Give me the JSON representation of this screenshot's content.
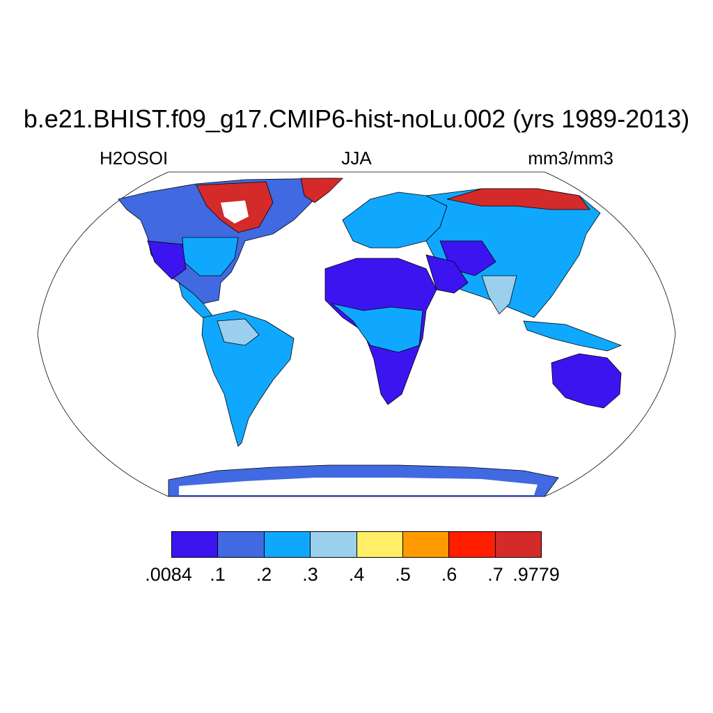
{
  "map": {
    "title": "b.e21.BHIST.f09_g17.CMIP6-hist-noLu.002 (yrs 1989-2013)",
    "variable": "H2OSOI",
    "season": "JJA",
    "units": "mm3/mm3",
    "projection": "robinson",
    "background": "#ffffff",
    "colorbar": {
      "labels": [
        ".0084",
        ".1",
        ".2",
        ".3",
        ".4",
        ".5",
        ".6",
        ".7",
        ".9779"
      ],
      "colors": [
        "#3c14f0",
        "#4169e1",
        "#10a8ff",
        "#9bcfee",
        "#ffee66",
        "#ff9b00",
        "#ff1e00",
        "#d42a2a"
      ]
    }
  }
}
